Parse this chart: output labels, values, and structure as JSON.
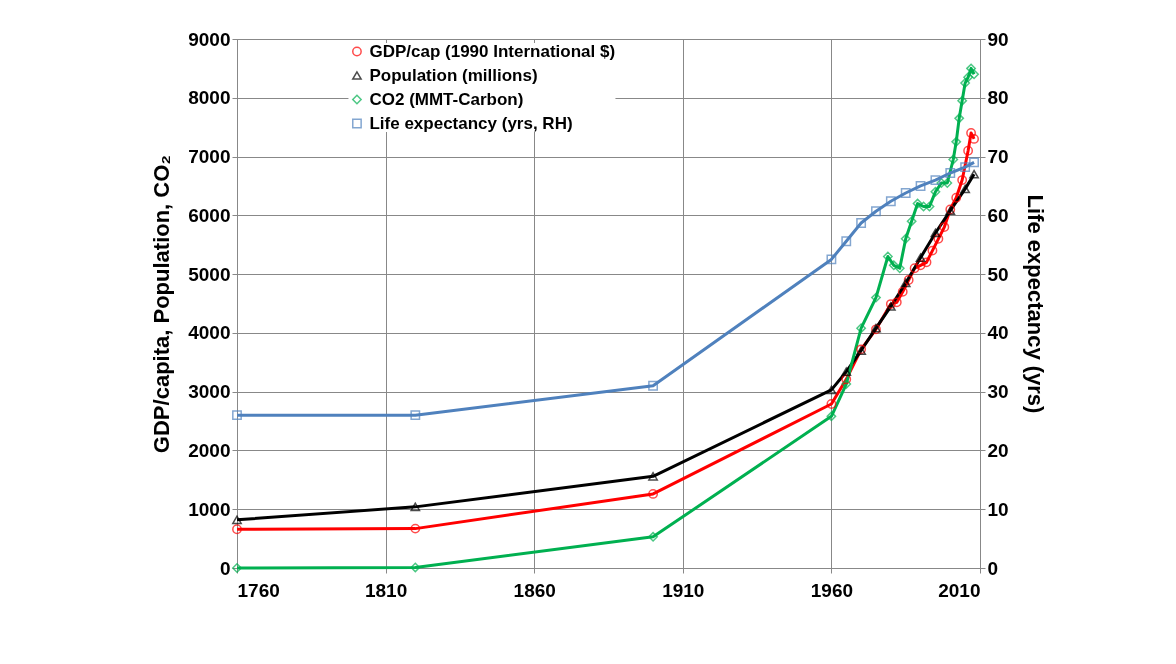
{
  "chart_data": {
    "type": "line",
    "xlabel": null,
    "ylabel": "GDP/capita,  Population, CO₂",
    "y2label": "Life expectancy (yrs)",
    "xlim": [
      1760,
      2010
    ],
    "xticks": [
      1760,
      1810,
      1860,
      1910,
      1960,
      2010
    ],
    "ylim": [
      0,
      9000
    ],
    "yticks": [
      0,
      1000,
      2000,
      3000,
      4000,
      5000,
      6000,
      7000,
      8000,
      9000
    ],
    "y2lim": [
      0,
      90
    ],
    "y2ticks": [
      0,
      10,
      20,
      30,
      40,
      50,
      60,
      70,
      80,
      90
    ],
    "grid": true,
    "legend": "top",
    "series": [
      {
        "name": "GDP/cap (1990 International $)",
        "color": "#ff0000",
        "marker": "circle",
        "x": [
          1760,
          1820,
          1900,
          1960,
          1965,
          1970,
          1975,
          1980,
          1982,
          1984,
          1986,
          1988,
          1990,
          1992,
          1994,
          1996,
          1998,
          2000,
          2002,
          2004,
          2006,
          2007,
          2008
        ],
        "values": [
          660,
          670,
          1260,
          2790,
          3210,
          3720,
          4060,
          4490,
          4520,
          4700,
          4900,
          5100,
          5150,
          5200,
          5400,
          5600,
          5800,
          6100,
          6300,
          6600,
          7100,
          7400,
          7300
        ]
      },
      {
        "name": "Population (millions)",
        "color": "#000000",
        "marker": "triangle",
        "x": [
          1760,
          1820,
          1900,
          1960,
          1965,
          1970,
          1975,
          1980,
          1985,
          1990,
          1995,
          2000,
          2005,
          2008
        ],
        "values": [
          820,
          1040,
          1560,
          3030,
          3340,
          3700,
          4080,
          4450,
          4850,
          5280,
          5700,
          6080,
          6450,
          6700
        ]
      },
      {
        "name": "CO2 (MMT-Carbon)",
        "color": "#00b050",
        "marker": "diamond",
        "x": [
          1760,
          1820,
          1900,
          1960,
          1965,
          1970,
          1975,
          1979,
          1981,
          1983,
          1985,
          1987,
          1989,
          1991,
          1993,
          1995,
          1997,
          1999,
          2001,
          2002,
          2003,
          2004,
          2005,
          2006,
          2007,
          2008
        ],
        "values": [
          0,
          10,
          530,
          2580,
          3130,
          4080,
          4600,
          5300,
          5150,
          5100,
          5600,
          5900,
          6200,
          6150,
          6150,
          6400,
          6550,
          6550,
          6950,
          7250,
          7650,
          7950,
          8250,
          8350,
          8500,
          8400
        ]
      },
      {
        "name": "Life expectancy (yrs, RH)",
        "color": "#4f81bd",
        "marker": "square",
        "axis": "y2",
        "x": [
          1760,
          1820,
          1900,
          1960,
          1965,
          1970,
          1975,
          1980,
          1985,
          1990,
          1995,
          2000,
          2005,
          2008
        ],
        "values": [
          26,
          26,
          31,
          52.5,
          55.6,
          58.7,
          60.7,
          62.4,
          63.8,
          65,
          66,
          67.2,
          68.2,
          69
        ]
      }
    ]
  }
}
